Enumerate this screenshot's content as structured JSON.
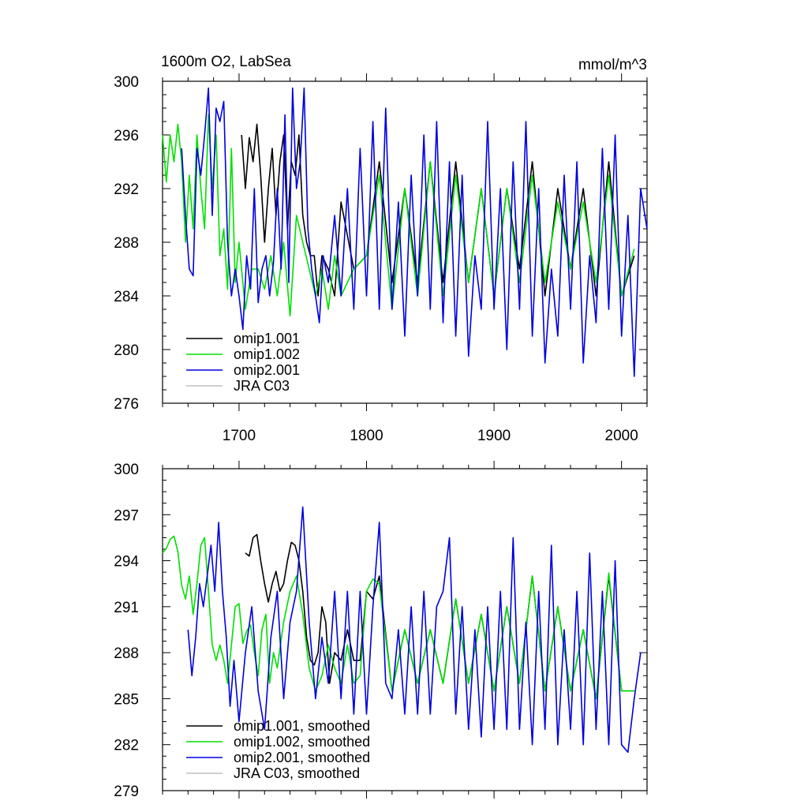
{
  "chart_data": [
    {
      "type": "line",
      "title": "1600m O2, LabSea",
      "units": "mmol/m^3",
      "xlim": [
        1640,
        2020
      ],
      "ylim": [
        276,
        300
      ],
      "x_ticks": [
        1700,
        1800,
        1900,
        2000
      ],
      "y_ticks": [
        276,
        280,
        284,
        288,
        292,
        296,
        300
      ],
      "legend": [
        "omip1.001",
        "omip1.002",
        "omip2.001",
        "JRA C03"
      ],
      "series": [
        {
          "name": "omip1.001",
          "color": "#000000",
          "x": [
            1702,
            1705,
            1708,
            1711,
            1714,
            1717,
            1720,
            1723,
            1726,
            1729,
            1732,
            1735,
            1738,
            1741,
            1744,
            1747,
            1750,
            1753,
            1756,
            1759,
            1762,
            1765,
            1770,
            1775,
            1780,
            1790,
            1800,
            1810,
            1820,
            1830,
            1840,
            1850,
            1860,
            1870,
            1880,
            1890,
            1900,
            1910,
            1920,
            1930,
            1940,
            1950,
            1960,
            1970,
            1980,
            1990,
            2000,
            2010
          ],
          "values": [
            296,
            292,
            295.8,
            294,
            296.8,
            293,
            288,
            292,
            295,
            290,
            294,
            296,
            289,
            294,
            293,
            296,
            290,
            288,
            287,
            287,
            284,
            287,
            286,
            284,
            291,
            286,
            287,
            294,
            285,
            292,
            285,
            294,
            285,
            294,
            285,
            292,
            284,
            292,
            286,
            294,
            284,
            292,
            286,
            292,
            284,
            294,
            284,
            287
          ]
        },
        {
          "name": "omip1.002",
          "color": "#00e000",
          "x": [
            1640,
            1643,
            1646,
            1649,
            1652,
            1655,
            1658,
            1661,
            1664,
            1667,
            1670,
            1673,
            1676,
            1679,
            1682,
            1685,
            1688,
            1691,
            1694,
            1697,
            1700,
            1705,
            1710,
            1715,
            1720,
            1725,
            1730,
            1735,
            1740,
            1745,
            1750,
            1755,
            1760,
            1765,
            1770,
            1775,
            1780,
            1790,
            1800,
            1810,
            1820,
            1830,
            1840,
            1850,
            1860,
            1870,
            1880,
            1890,
            1900,
            1910,
            1920,
            1930,
            1940,
            1950,
            1960,
            1970,
            1980,
            1990,
            2000,
            2010
          ],
          "values": [
            296,
            292.5,
            296,
            294,
            296.8,
            294,
            288,
            293,
            289,
            296,
            292,
            289,
            297.5,
            292,
            296,
            287,
            289,
            284.5,
            295,
            285,
            288,
            283,
            286,
            286,
            284.5,
            287,
            284,
            288,
            282.5,
            290,
            288,
            286,
            284,
            286,
            283,
            287,
            284,
            286,
            287,
            293,
            283,
            292,
            284,
            294,
            284,
            293,
            285,
            292,
            284,
            292,
            285,
            293,
            285,
            291,
            286,
            291,
            285,
            293,
            284,
            287.5
          ]
        },
        {
          "name": "omip2.001",
          "color": "#0000e0",
          "x": [
            1655,
            1658,
            1661,
            1664,
            1667,
            1670,
            1673,
            1676,
            1679,
            1682,
            1685,
            1688,
            1691,
            1694,
            1697,
            1700,
            1703,
            1706,
            1709,
            1712,
            1715,
            1718,
            1721,
            1724,
            1727,
            1730,
            1733,
            1736,
            1739,
            1742,
            1745,
            1748,
            1751,
            1754,
            1757,
            1760,
            1763,
            1766,
            1770,
            1775,
            1780,
            1785,
            1790,
            1795,
            1800,
            1805,
            1810,
            1815,
            1820,
            1825,
            1830,
            1835,
            1840,
            1845,
            1850,
            1855,
            1860,
            1865,
            1870,
            1875,
            1880,
            1885,
            1890,
            1895,
            1900,
            1905,
            1910,
            1915,
            1920,
            1925,
            1930,
            1935,
            1940,
            1945,
            1950,
            1955,
            1960,
            1965,
            1970,
            1975,
            1980,
            1985,
            1990,
            1995,
            2000,
            2005,
            2010,
            2015,
            2020
          ],
          "values": [
            295,
            290,
            286,
            285.5,
            295,
            293,
            296,
            299.5,
            290,
            298,
            297,
            298.5,
            288,
            284,
            286,
            284,
            281.5,
            287,
            284.5,
            292,
            283.5,
            286,
            287,
            284,
            286.5,
            292,
            286,
            297.5,
            285,
            299.5,
            292,
            294,
            299.5,
            289,
            286,
            284,
            282,
            287,
            285,
            290,
            284,
            292,
            283,
            295,
            284,
            297,
            283,
            298,
            283,
            291,
            281,
            293,
            284,
            296,
            283,
            297,
            282,
            294,
            281,
            293,
            279.5,
            287,
            283,
            297,
            283,
            292,
            280,
            294,
            283,
            297,
            281,
            292,
            279,
            286,
            281,
            293,
            283,
            294,
            279,
            287,
            282,
            295,
            283,
            296,
            281,
            290,
            278,
            292,
            289
          ]
        },
        {
          "name": "JRA C03",
          "color": "#c0c0c0",
          "x": [],
          "values": []
        }
      ]
    },
    {
      "type": "line",
      "title": "",
      "units": "",
      "xlim": [
        1640,
        2020
      ],
      "ylim": [
        279,
        300
      ],
      "x_ticks": [
        1700,
        1800,
        1900,
        2000
      ],
      "y_ticks": [
        279,
        282,
        285,
        288,
        291,
        294,
        297,
        300
      ],
      "legend": [
        "omip1.001, smoothed",
        "omip1.002, smoothed",
        "omip2.001, smoothed",
        "JRA C03, smoothed"
      ],
      "series": [
        {
          "name": "omip1.001, smoothed",
          "color": "#000000",
          "x": [
            1705,
            1708,
            1711,
            1714,
            1717,
            1720,
            1723,
            1726,
            1729,
            1732,
            1735,
            1738,
            1741,
            1744,
            1747,
            1750,
            1753,
            1756,
            1759,
            1762,
            1765,
            1768,
            1771,
            1775,
            1780,
            1785,
            1790,
            1795,
            1800,
            1805,
            1810,
            1820,
            1830,
            1840,
            1850,
            1860,
            1870,
            1880,
            1890,
            1900,
            1910,
            1920,
            1930,
            1940,
            1950,
            1960,
            1970,
            1980,
            1990,
            2000,
            2010
          ],
          "values": [
            294.5,
            294.3,
            295.5,
            295.7,
            294,
            292.5,
            291.3,
            292.5,
            293.3,
            292,
            292.5,
            294,
            295.2,
            295,
            294,
            292,
            289,
            287.5,
            287.2,
            288,
            291,
            290,
            286,
            288,
            287.5,
            289.5,
            287.5,
            287.5,
            292,
            291.5,
            293,
            285.5,
            289.5,
            286,
            289.5,
            286,
            291.5,
            286,
            290.5,
            285.5,
            291,
            286,
            293,
            285.5,
            291,
            285.5,
            289.5,
            285,
            293,
            285.5,
            285.5
          ]
        },
        {
          "name": "omip1.002, smoothed",
          "color": "#00e000",
          "x": [
            1640,
            1643,
            1646,
            1649,
            1652,
            1655,
            1658,
            1661,
            1664,
            1667,
            1670,
            1673,
            1676,
            1679,
            1682,
            1685,
            1688,
            1691,
            1694,
            1697,
            1700,
            1703,
            1706,
            1709,
            1712,
            1715,
            1718,
            1721,
            1724,
            1727,
            1730,
            1735,
            1740,
            1745,
            1750,
            1755,
            1760,
            1765,
            1770,
            1775,
            1780,
            1785,
            1790,
            1795,
            1800,
            1805,
            1810,
            1820,
            1830,
            1840,
            1850,
            1860,
            1870,
            1880,
            1890,
            1900,
            1910,
            1920,
            1930,
            1940,
            1950,
            1960,
            1970,
            1980,
            1990,
            2000,
            2010
          ],
          "values": [
            294.5,
            294.8,
            295.4,
            295.6,
            294.6,
            292.4,
            291.5,
            293,
            290.5,
            292.5,
            295,
            295.5,
            292,
            288.5,
            287.5,
            288.5,
            287.5,
            286,
            288.5,
            291,
            291.2,
            288.6,
            289.4,
            289.8,
            288,
            286.5,
            289.5,
            290.5,
            286,
            288,
            287,
            290,
            292,
            293,
            290.5,
            287,
            285.5,
            286.5,
            288.5,
            287,
            286,
            288.5,
            286,
            286.5,
            292,
            292.8,
            292.5,
            285.5,
            289.5,
            286,
            289.5,
            286,
            291.5,
            286,
            290.5,
            285.5,
            291,
            286,
            293,
            285.5,
            291,
            285.5,
            289.5,
            285,
            293.2,
            285.5,
            285.5
          ]
        },
        {
          "name": "omip2.001, smoothed",
          "color": "#0000e0",
          "x": [
            1660,
            1663,
            1666,
            1669,
            1672,
            1675,
            1678,
            1681,
            1684,
            1687,
            1690,
            1693,
            1696,
            1700,
            1705,
            1710,
            1715,
            1720,
            1725,
            1730,
            1735,
            1740,
            1745,
            1750,
            1755,
            1760,
            1765,
            1770,
            1775,
            1780,
            1785,
            1790,
            1795,
            1800,
            1805,
            1810,
            1815,
            1820,
            1825,
            1830,
            1835,
            1840,
            1845,
            1850,
            1855,
            1860,
            1865,
            1870,
            1875,
            1880,
            1885,
            1890,
            1895,
            1900,
            1905,
            1910,
            1915,
            1920,
            1925,
            1930,
            1935,
            1940,
            1945,
            1950,
            1955,
            1960,
            1965,
            1970,
            1975,
            1980,
            1985,
            1990,
            1995,
            2000,
            2005,
            2010,
            2015
          ],
          "values": [
            289.5,
            286.5,
            289,
            292.5,
            291,
            293,
            295,
            292,
            296.5,
            292,
            289,
            284.5,
            287.5,
            283.5,
            288,
            291,
            285.5,
            283,
            289,
            292,
            285,
            290,
            292,
            297.5,
            290,
            285,
            289,
            286,
            292,
            285,
            292,
            284,
            292,
            284,
            291,
            296.5,
            286,
            285,
            289.5,
            284,
            291,
            284,
            292,
            284,
            291,
            292,
            295.5,
            284,
            291,
            283,
            289.5,
            282.5,
            291,
            283,
            292,
            283,
            295.5,
            283,
            290,
            282,
            292,
            283,
            295,
            282,
            289.5,
            283,
            292,
            282,
            294.5,
            283,
            292,
            282,
            294,
            282,
            281.5,
            285,
            288
          ]
        },
        {
          "name": "JRA C03, smoothed",
          "color": "#c0c0c0",
          "x": [],
          "values": []
        }
      ]
    }
  ]
}
